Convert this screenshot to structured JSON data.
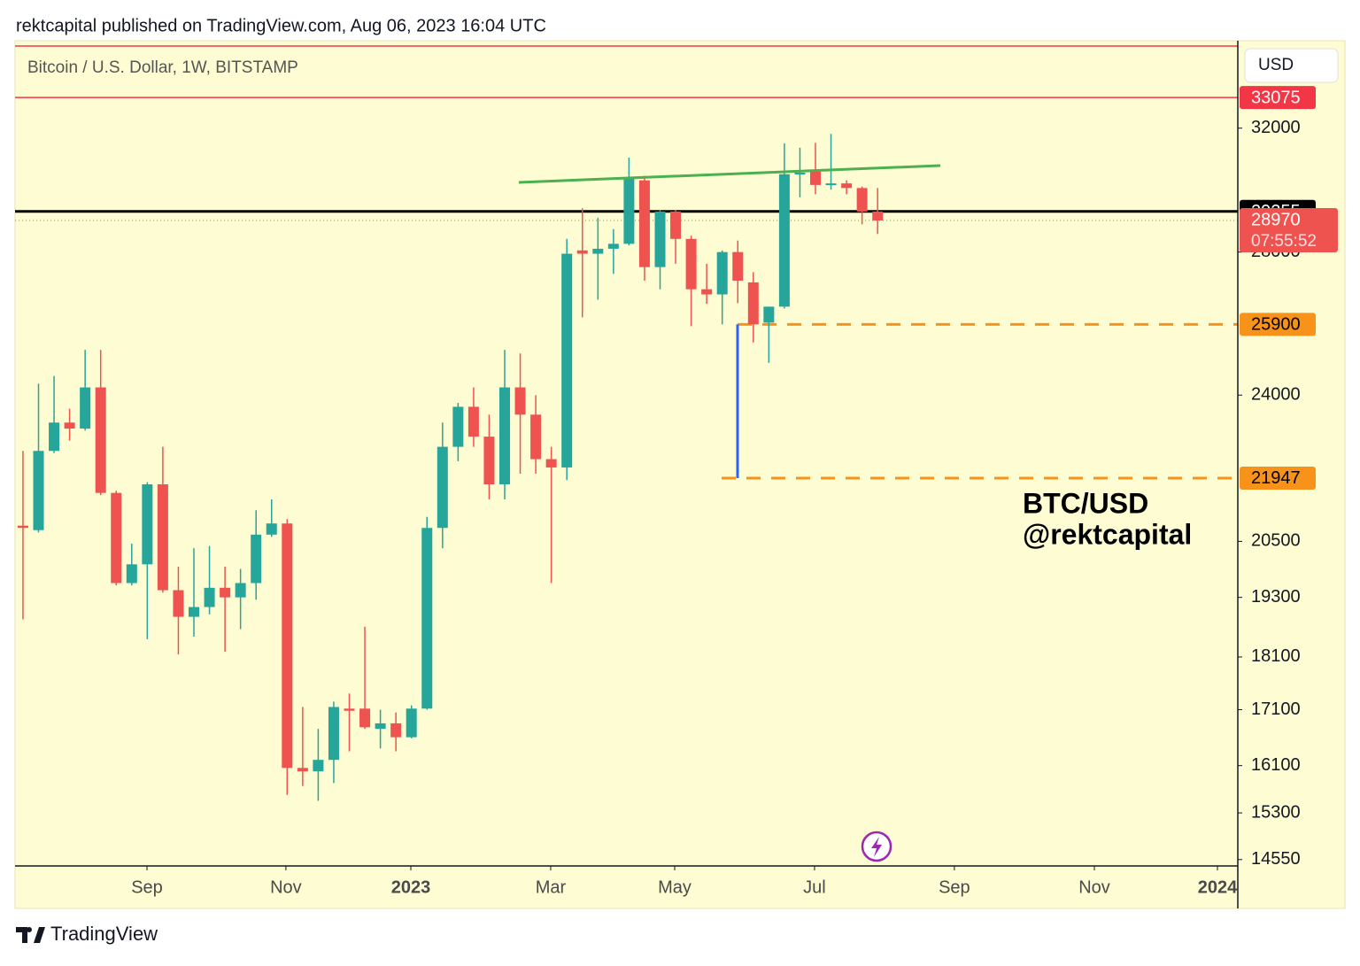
{
  "header": "rektcapital published on TradingView.com, Aug 06, 2023 16:04 UTC",
  "chart_data": {
    "type": "candlestick",
    "title": "Bitcoin / U.S. Dollar, 1W, BITSTAMP",
    "currency": "USD",
    "categories": [
      null,
      null,
      null,
      null,
      null,
      null,
      null,
      null,
      null,
      null,
      null,
      null,
      null,
      null,
      null,
      null,
      null,
      null,
      null,
      null,
      null,
      null,
      null,
      null,
      null,
      null,
      null,
      null,
      null,
      null,
      null,
      null,
      null,
      null,
      null,
      null,
      null,
      null,
      null,
      null,
      null,
      null,
      null,
      null,
      null,
      null,
      null,
      null,
      null,
      null,
      null,
      null,
      null,
      null,
      null,
      null
    ],
    "open": [
      20850,
      20750,
      22600,
      23300,
      23150,
      24200,
      21600,
      19600,
      20000,
      21800,
      19450,
      18900,
      19100,
      19500,
      19300,
      19600,
      20650,
      20900,
      16060,
      16000,
      16200,
      17120,
      17120,
      16750,
      16850,
      16600,
      17120,
      20800,
      22700,
      23700,
      22950,
      21800,
      24200,
      23500,
      22400,
      22200,
      28050,
      27950,
      28100,
      28250,
      30250,
      27550,
      29250,
      28400,
      26900,
      26750,
      28000,
      27100,
      25950,
      26400,
      30450,
      30550,
      30100,
      30150,
      30000,
      29250
    ],
    "high": [
      22600,
      24300,
      24500,
      23650,
      25200,
      25200,
      21650,
      20450,
      21850,
      22700,
      19950,
      20350,
      20400,
      19950,
      19900,
      21200,
      21450,
      21000,
      17150,
      16750,
      17250,
      17400,
      18700,
      17100,
      17050,
      17180,
      21050,
      23300,
      23800,
      24200,
      23500,
      25200,
      25100,
      24000,
      22700,
      28400,
      29350,
      29050,
      28700,
      31000,
      30400,
      29300,
      29300,
      28500,
      27650,
      28050,
      28350,
      27400,
      26400,
      31480,
      31330,
      31500,
      31800,
      30250,
      30050,
      30000
    ],
    "low": [
      18850,
      20700,
      22550,
      22850,
      23100,
      21550,
      19550,
      19550,
      18450,
      19400,
      18150,
      18500,
      18950,
      18200,
      18650,
      19250,
      20600,
      15600,
      15750,
      15500,
      15800,
      16350,
      16750,
      16400,
      16350,
      16580,
      17100,
      20350,
      22350,
      22700,
      21450,
      21450,
      22050,
      22050,
      19600,
      21900,
      26100,
      26600,
      27350,
      28200,
      27150,
      26900,
      27650,
      25850,
      26480,
      25900,
      26500,
      25400,
      24850,
      26350,
      29700,
      29800,
      29950,
      29800,
      28850,
      28550
    ],
    "close": [
      20800,
      22600,
      23300,
      23150,
      24200,
      21600,
      19600,
      20000,
      21800,
      19450,
      18900,
      19100,
      19500,
      19300,
      19600,
      20650,
      20900,
      16060,
      16000,
      16200,
      17150,
      17080,
      16780,
      16850,
      16600,
      17120,
      20800,
      22700,
      23700,
      22950,
      21800,
      24200,
      23500,
      22400,
      22200,
      27950,
      27950,
      28100,
      28250,
      30300,
      27550,
      29250,
      28400,
      26900,
      26750,
      28000,
      27150,
      25900,
      26400,
      30450,
      30500,
      30100,
      30150,
      30000,
      29250,
      28970
    ],
    "up_color": "#26a69a",
    "down_color": "#ef5350",
    "log_scale": true,
    "ylim": [
      14450,
      34960
    ],
    "yticks": [
      14550,
      15300,
      16100,
      17100,
      18100,
      19300,
      20500,
      24000,
      28000,
      32000
    ],
    "xlim": [
      -0.51,
      78.18
    ],
    "xticks": [
      {
        "value": 7.98,
        "label": "Sep"
      },
      {
        "value": 16.92,
        "label": "Nov"
      },
      {
        "value": 24.96,
        "label": "2023"
      },
      {
        "value": 33.96,
        "label": "Mar"
      },
      {
        "value": 41.94,
        "label": "May"
      },
      {
        "value": 50.94,
        "label": "Jul"
      },
      {
        "value": 59.94,
        "label": "Sep"
      },
      {
        "value": 68.95,
        "label": "Nov"
      },
      {
        "value": 76.87,
        "label": "2024"
      }
    ],
    "levels": [
      {
        "value": 33075,
        "color": "#f23645",
        "text_color": "#ffffff"
      },
      {
        "value": 29255,
        "color": "#000000",
        "text_color": "#ffffff"
      },
      {
        "value": 25900,
        "color": "#f7931a",
        "text_color": "#000000"
      },
      {
        "value": 21947,
        "color": "#f7931a",
        "text_color": "#000000"
      }
    ],
    "last_price": {
      "value": 28970,
      "countdown": "07:55:52",
      "color": "#ef5350"
    },
    "annotations": [
      "BTC/USD",
      "@rektcapital"
    ]
  },
  "footer": "TradingView"
}
